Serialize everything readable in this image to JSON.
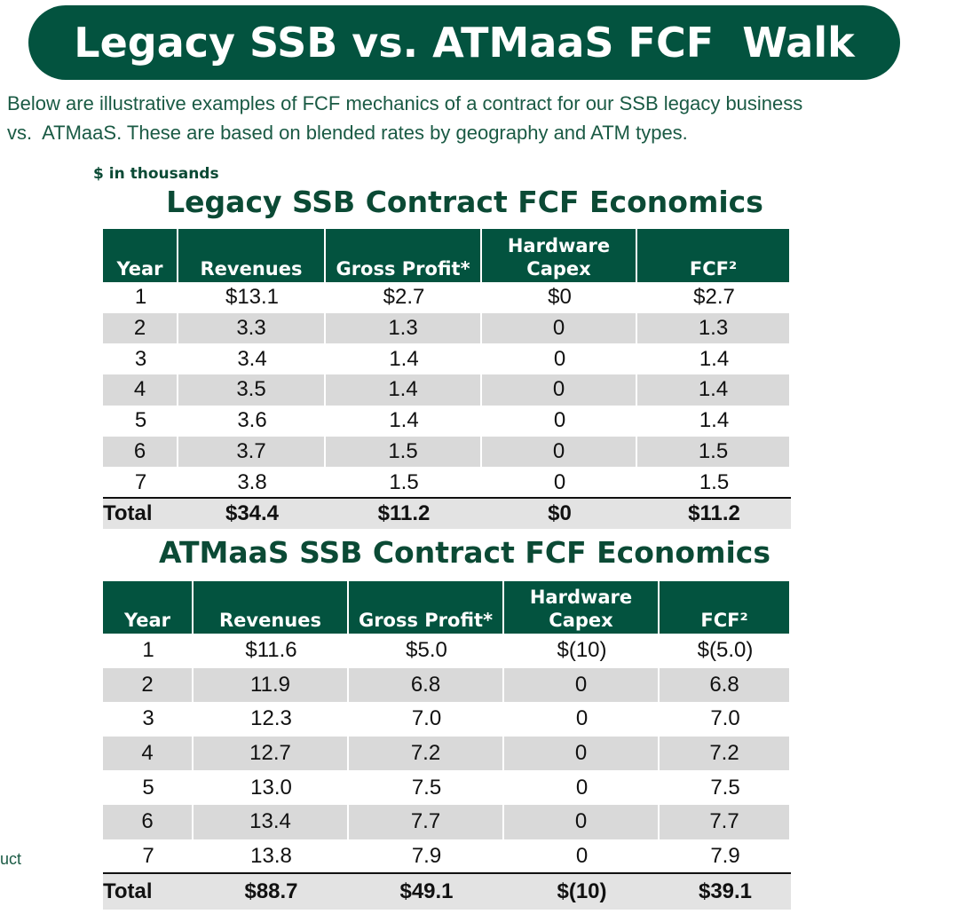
{
  "header": {
    "title": "Legacy SSB vs. ATMaaS FCF  Walk"
  },
  "intro": [
    "Below are illustrative examples of FCF mechanics of a contract for our SSB legacy business",
    "vs.  ATMaaS. These are based on blended rates by geography and ATM types."
  ],
  "units": "$ in thousands",
  "tables": [
    {
      "title": "Legacy SSB Contract FCF Economics",
      "header": [
        "Year",
        "Revenues",
        "Gross Profit*",
        "Hardware Capex",
        "FCF²"
      ],
      "rows": [
        [
          "1",
          "$13.1",
          "$2.7",
          "$0",
          "$2.7"
        ],
        [
          "2",
          "3.3",
          "1.3",
          "0",
          "1.3"
        ],
        [
          "3",
          "3.4",
          "1.4",
          "0",
          "1.4"
        ],
        [
          "4",
          "3.5",
          "1.4",
          "0",
          "1.4"
        ],
        [
          "5",
          "3.6",
          "1.4",
          "0",
          "1.4"
        ],
        [
          "6",
          "3.7",
          "1.5",
          "0",
          "1.5"
        ],
        [
          "7",
          "3.8",
          "1.5",
          "0",
          "1.5"
        ]
      ],
      "total": [
        "Total",
        "$34.4",
        "$11.2",
        "$0",
        "$11.2"
      ]
    },
    {
      "title": "ATMaaS SSB Contract FCF Economics",
      "header": [
        "Year",
        "Revenues",
        "Gross Profit*",
        "Hardware Capex",
        "FCF²"
      ],
      "rows": [
        [
          "1",
          "$11.6",
          "$5.0",
          "$(10)",
          "$(5.0)"
        ],
        [
          "2",
          "11.9",
          "6.8",
          "0",
          "6.8"
        ],
        [
          "3",
          "12.3",
          "7.0",
          "0",
          "7.0"
        ],
        [
          "4",
          "12.7",
          "7.2",
          "0",
          "7.2"
        ],
        [
          "5",
          "13.0",
          "7.5",
          "0",
          "7.5"
        ],
        [
          "6",
          "13.4",
          "7.7",
          "0",
          "7.7"
        ],
        [
          "7",
          "13.8",
          "7.9",
          "0",
          "7.9"
        ]
      ],
      "total": [
        "Total",
        "$88.7",
        "$49.1",
        "$(10)",
        "$39.1"
      ]
    }
  ],
  "side_note": "uct"
}
